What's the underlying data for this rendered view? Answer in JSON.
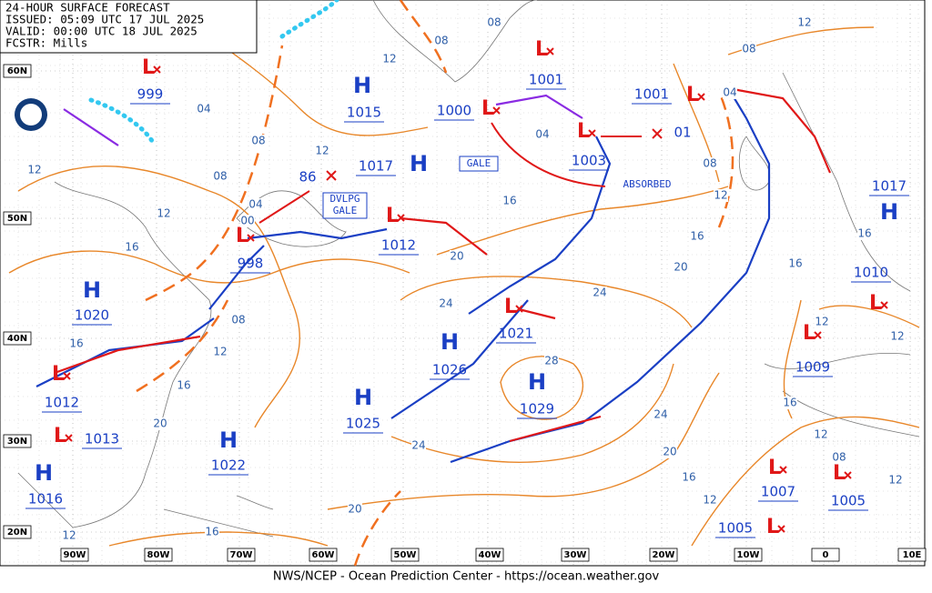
{
  "header": {
    "lines": [
      "24-HOUR SURFACE FORECAST",
      "ISSUED: 05:09 UTC 17 JUL 2025",
      "VALID:  00:00 UTC 18 JUL 2025",
      "FCSTR:  Mills"
    ]
  },
  "lat_labels": [
    "60N",
    "50N",
    "40N",
    "30N",
    "20N"
  ],
  "lon_labels": [
    "90W",
    "80W",
    "70W",
    "60W",
    "50W",
    "40W",
    "30W",
    "20W",
    "10W",
    "0",
    "10E"
  ],
  "highs": [
    {
      "symbol": "H",
      "pressure": "1015"
    },
    {
      "symbol": "H",
      "pressure": "1017"
    },
    {
      "symbol": "H",
      "pressure": "1020"
    },
    {
      "symbol": "H",
      "pressure": "1026"
    },
    {
      "symbol": "H",
      "pressure": "1029"
    },
    {
      "symbol": "H",
      "pressure": "1025"
    },
    {
      "symbol": "H",
      "pressure": "1022"
    },
    {
      "symbol": "H",
      "pressure": "1016"
    },
    {
      "symbol": "H",
      "pressure": "1017"
    }
  ],
  "lows": [
    {
      "symbol": "L",
      "pressure": "999"
    },
    {
      "symbol": "L",
      "pressure": "1001"
    },
    {
      "symbol": "L",
      "pressure": "1000"
    },
    {
      "symbol": "L",
      "pressure": "1003"
    },
    {
      "symbol": "L",
      "pressure": "1001"
    },
    {
      "symbol": "L",
      "pressure": "998"
    },
    {
      "symbol": "L",
      "pressure": "1012"
    },
    {
      "symbol": "L",
      "pressure": "1021"
    },
    {
      "symbol": "L",
      "pressure": "1012"
    },
    {
      "symbol": "L",
      "pressure": "1013"
    },
    {
      "symbol": "L",
      "pressure": "1009"
    },
    {
      "symbol": "L",
      "pressure": "1010"
    },
    {
      "symbol": "L",
      "pressure": "1007"
    },
    {
      "symbol": "L",
      "pressure": "1005"
    },
    {
      "symbol": "L",
      "pressure": "1005"
    }
  ],
  "forecast_positions": [
    "86",
    "01"
  ],
  "isobar_labels": [
    "04",
    "08",
    "08",
    "12",
    "12",
    "08",
    "04",
    "04",
    "08",
    "12",
    "08",
    "12",
    "12",
    "16",
    "04",
    "00",
    "16",
    "08",
    "12",
    "16",
    "20",
    "20",
    "16",
    "24",
    "24",
    "08",
    "16",
    "12",
    "12",
    "12",
    "16",
    "28",
    "16",
    "20",
    "24",
    "24",
    "20",
    "12",
    "08",
    "16",
    "12",
    "12",
    "20",
    "16",
    "12",
    "16"
  ],
  "annotations": {
    "gale": "GALE",
    "dvlpg_gale": [
      "DVLPG",
      "GALE"
    ],
    "absorbed": "ABSORBED"
  },
  "footer": "NWS/NCEP - Ocean Prediction Center - https://ocean.weather.gov"
}
